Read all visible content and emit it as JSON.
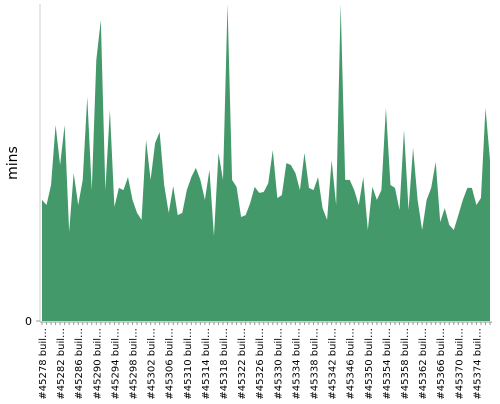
{
  "chart_data": {
    "type": "area",
    "y_label": "mins",
    "color": "#44996b",
    "categories": [
      "#45278 buil…",
      null,
      null,
      null,
      "#45282 buil…",
      null,
      null,
      null,
      "#45286 buil…",
      null,
      null,
      null,
      "#45290 buil…",
      null,
      null,
      null,
      "#45294 buil…",
      null,
      null,
      null,
      "#45298 buil…",
      null,
      null,
      null,
      "#45302 buil…",
      null,
      null,
      null,
      "#45306 buil…",
      null,
      null,
      null,
      "#45310 buil…",
      null,
      null,
      null,
      "#45314 buil…",
      null,
      null,
      null,
      "#45318 buil…",
      null,
      null,
      null,
      "#45322 buil…",
      null,
      null,
      null,
      "#45326 buil…",
      null,
      null,
      null,
      "#45330 buil…",
      null,
      null,
      null,
      "#45334 buil…",
      null,
      null,
      null,
      "#45338 buil…",
      null,
      null,
      null,
      "#45342 buil…",
      null,
      null,
      null,
      "#45346 buil…",
      null,
      null,
      null,
      "#45350 buil…",
      null,
      null,
      null,
      "#45354 buil…",
      null,
      null,
      null,
      "#45358 buil…",
      null,
      null,
      null,
      "#45362 buil…",
      null,
      null,
      null,
      "#45366 buil…",
      null,
      null,
      null,
      "#45370 buil…",
      null,
      null,
      null,
      "#45374 buil…",
      null,
      null,
      null
    ],
    "values": [
      38.2,
      36.6,
      42.9,
      61.8,
      49.2,
      61.8,
      28.1,
      46.7,
      36.6,
      44.5,
      70.7,
      41.3,
      82.3,
      95.0,
      41.3,
      66.6,
      36.0,
      42.0,
      41.3,
      45.4,
      38.2,
      34.1,
      31.9,
      57.1,
      44.5,
      56.2,
      59.6,
      42.9,
      34.1,
      42.6,
      33.4,
      34.1,
      41.3,
      45.4,
      48.3,
      44.5,
      38.2,
      47.7,
      26.8,
      53.0,
      44.5,
      100,
      44.5,
      42.3,
      32.8,
      33.4,
      37.2,
      42.3,
      40.4,
      40.7,
      43.5,
      53.9,
      38.8,
      39.7,
      49.8,
      49.2,
      46.7,
      41.3,
      53.0,
      42.0,
      41.3,
      45.4,
      35.6,
      31.9,
      50.8,
      36.6,
      100,
      44.5,
      44.5,
      41.3,
      36.6,
      45.4,
      28.7,
      42.3,
      38.2,
      41.3,
      67.2,
      42.9,
      42.0,
      35.0,
      60.3,
      35.0,
      54.6,
      38.2,
      28.7,
      38.2,
      42.0,
      50.2,
      31.2,
      35.6,
      30.3,
      28.7,
      33.4,
      38.2,
      42.0,
      42.0,
      36.6,
      38.8,
      67.2,
      50.8
    ],
    "ylim": [
      0,
      100
    ],
    "yticks": [
      0
    ]
  }
}
